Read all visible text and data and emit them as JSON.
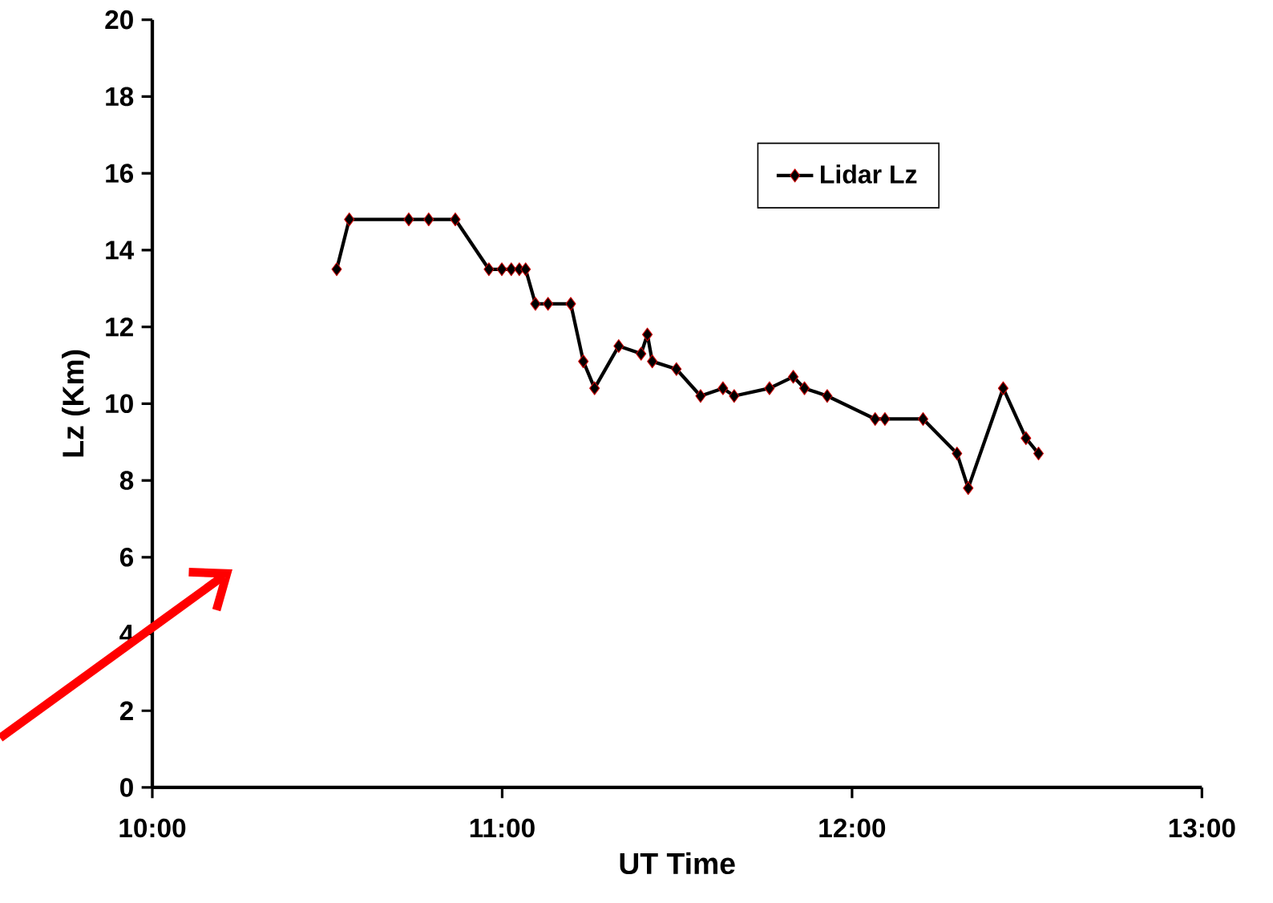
{
  "chart_data": {
    "type": "line",
    "xlabel": "UT Time",
    "ylabel": "Lz (Km)",
    "x": [
      10.527,
      10.563,
      10.733,
      10.79,
      10.866,
      10.962,
      10.999,
      11.026,
      11.049,
      11.067,
      11.095,
      11.131,
      11.196,
      11.232,
      11.264,
      11.333,
      11.397,
      11.415,
      11.429,
      11.498,
      11.567,
      11.631,
      11.663,
      11.764,
      11.832,
      11.864,
      11.929,
      12.066,
      12.094,
      12.203,
      12.3,
      12.332,
      12.432,
      12.497,
      12.533
    ],
    "series": [
      {
        "name": "Lidar Lz",
        "color": "#000000",
        "values": [
          13.5,
          14.8,
          14.8,
          14.8,
          14.8,
          13.5,
          13.5,
          13.5,
          13.5,
          13.5,
          12.6,
          12.6,
          12.6,
          11.1,
          10.4,
          11.5,
          11.3,
          11.8,
          11.1,
          10.9,
          10.2,
          10.4,
          10.2,
          10.4,
          10.7,
          10.4,
          10.2,
          9.6,
          9.6,
          9.6,
          8.7,
          7.8,
          10.4,
          9.1,
          8.7
        ]
      }
    ],
    "xlim": [
      10,
      13
    ],
    "ylim": [
      0,
      20
    ],
    "xticks": [
      {
        "value": 10,
        "label": "10:00"
      },
      {
        "value": 11,
        "label": "11:00"
      },
      {
        "value": 12,
        "label": "12:00"
      },
      {
        "value": 13,
        "label": "13:00"
      }
    ],
    "yticks": [
      0,
      2,
      4,
      6,
      8,
      10,
      12,
      14,
      16,
      18,
      20
    ],
    "grid": false,
    "legend": "top right",
    "marker": "diamond",
    "line_style": "solid"
  }
}
